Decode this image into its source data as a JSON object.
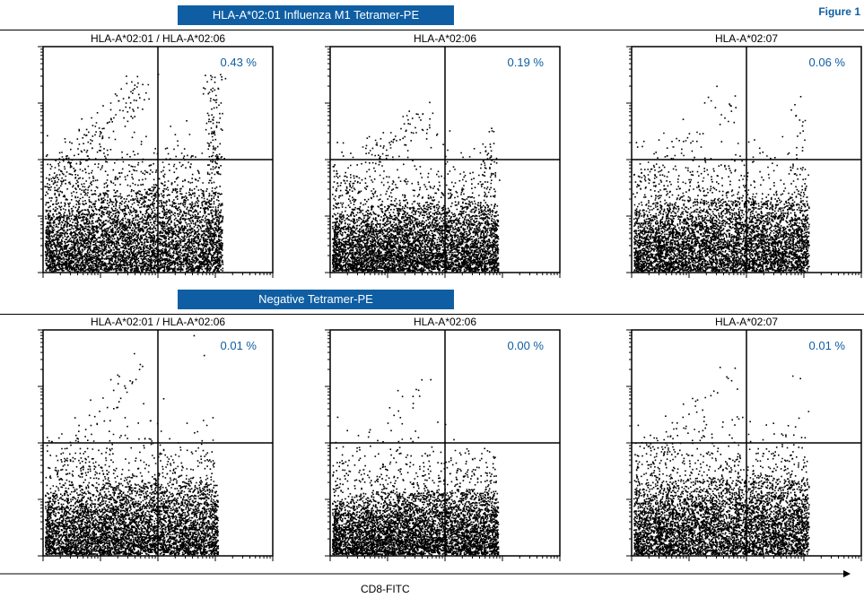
{
  "header": {
    "figure_label": "Figure 1",
    "banner_top": "HLA-A*02:01 Influenza M1 Tetramer-PE",
    "banner_bottom": "Negative Tetramer-PE"
  },
  "x_axis_label": "CD8-FITC",
  "colors": {
    "banner": "#0f5ea3",
    "percent_text": "#0f5ea3",
    "dots": "#000000"
  },
  "chart_data": [
    {
      "type": "scatter",
      "title": "HLA-A*02:01 / HLA-A*02:06",
      "row": "HLA-A*02:01 Influenza M1 Tetramer-PE",
      "upper_right_percent": "0.43 %",
      "quadrant_gate": {
        "x": 0.5,
        "y": 0.5
      }
    },
    {
      "type": "scatter",
      "title": "HLA-A*02:06",
      "row": "HLA-A*02:01 Influenza M1 Tetramer-PE",
      "upper_right_percent": "0.19 %",
      "quadrant_gate": {
        "x": 0.5,
        "y": 0.5
      }
    },
    {
      "type": "scatter",
      "title": "HLA-A*02:07",
      "row": "HLA-A*02:01 Influenza M1 Tetramer-PE",
      "upper_right_percent": "0.06 %",
      "quadrant_gate": {
        "x": 0.5,
        "y": 0.5
      }
    },
    {
      "type": "scatter",
      "title": "HLA-A*02:01 / HLA-A*02:06",
      "row": "Negative Tetramer-PE",
      "upper_right_percent": "0.01 %",
      "quadrant_gate": {
        "x": 0.5,
        "y": 0.5
      }
    },
    {
      "type": "scatter",
      "title": "HLA-A*02:06",
      "row": "Negative Tetramer-PE",
      "upper_right_percent": "0.00 %",
      "quadrant_gate": {
        "x": 0.5,
        "y": 0.5
      }
    },
    {
      "type": "scatter",
      "title": "HLA-A*02:07",
      "row": "Negative Tetramer-PE",
      "upper_right_percent": "0.01 %",
      "quadrant_gate": {
        "x": 0.5,
        "y": 0.5
      }
    }
  ]
}
